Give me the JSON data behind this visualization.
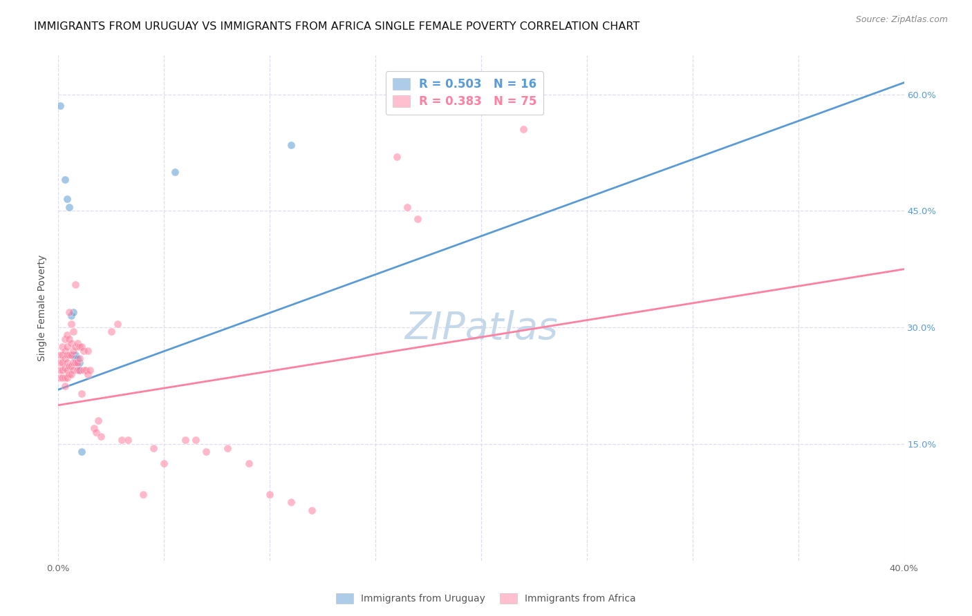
{
  "title": "IMMIGRANTS FROM URUGUAY VS IMMIGRANTS FROM AFRICA SINGLE FEMALE POVERTY CORRELATION CHART",
  "source": "Source: ZipAtlas.com",
  "ylabel": "Single Female Poverty",
  "xlim": [
    0.0,
    0.4
  ],
  "ylim": [
    0.0,
    0.65
  ],
  "watermark": "ZIPatlas",
  "legend_blue_r": "0.503",
  "legend_blue_n": "16",
  "legend_pink_r": "0.383",
  "legend_pink_n": "75",
  "blue_color": "#5B9BD5",
  "pink_color": "#FF80A0",
  "blue_scatter": [
    [
      0.001,
      0.585
    ],
    [
      0.003,
      0.49
    ],
    [
      0.004,
      0.465
    ],
    [
      0.005,
      0.455
    ],
    [
      0.006,
      0.315
    ],
    [
      0.007,
      0.32
    ],
    [
      0.007,
      0.265
    ],
    [
      0.008,
      0.265
    ],
    [
      0.008,
      0.26
    ],
    [
      0.009,
      0.26
    ],
    [
      0.009,
      0.25
    ],
    [
      0.01,
      0.255
    ],
    [
      0.01,
      0.245
    ],
    [
      0.011,
      0.14
    ],
    [
      0.055,
      0.5
    ],
    [
      0.11,
      0.535
    ]
  ],
  "pink_scatter": [
    [
      0.001,
      0.265
    ],
    [
      0.001,
      0.255
    ],
    [
      0.001,
      0.245
    ],
    [
      0.001,
      0.235
    ],
    [
      0.002,
      0.275
    ],
    [
      0.002,
      0.265
    ],
    [
      0.002,
      0.255
    ],
    [
      0.002,
      0.245
    ],
    [
      0.002,
      0.235
    ],
    [
      0.003,
      0.285
    ],
    [
      0.003,
      0.27
    ],
    [
      0.003,
      0.26
    ],
    [
      0.003,
      0.248
    ],
    [
      0.003,
      0.235
    ],
    [
      0.003,
      0.225
    ],
    [
      0.004,
      0.29
    ],
    [
      0.004,
      0.275
    ],
    [
      0.004,
      0.265
    ],
    [
      0.004,
      0.255
    ],
    [
      0.004,
      0.245
    ],
    [
      0.004,
      0.235
    ],
    [
      0.005,
      0.32
    ],
    [
      0.005,
      0.285
    ],
    [
      0.005,
      0.265
    ],
    [
      0.005,
      0.25
    ],
    [
      0.005,
      0.24
    ],
    [
      0.006,
      0.305
    ],
    [
      0.006,
      0.28
    ],
    [
      0.006,
      0.265
    ],
    [
      0.006,
      0.25
    ],
    [
      0.006,
      0.24
    ],
    [
      0.007,
      0.295
    ],
    [
      0.007,
      0.27
    ],
    [
      0.007,
      0.255
    ],
    [
      0.007,
      0.245
    ],
    [
      0.008,
      0.355
    ],
    [
      0.008,
      0.275
    ],
    [
      0.008,
      0.255
    ],
    [
      0.009,
      0.28
    ],
    [
      0.009,
      0.255
    ],
    [
      0.009,
      0.245
    ],
    [
      0.01,
      0.275
    ],
    [
      0.01,
      0.26
    ],
    [
      0.01,
      0.245
    ],
    [
      0.011,
      0.275
    ],
    [
      0.011,
      0.215
    ],
    [
      0.012,
      0.27
    ],
    [
      0.012,
      0.245
    ],
    [
      0.013,
      0.245
    ],
    [
      0.014,
      0.27
    ],
    [
      0.014,
      0.24
    ],
    [
      0.015,
      0.245
    ],
    [
      0.017,
      0.17
    ],
    [
      0.018,
      0.165
    ],
    [
      0.019,
      0.18
    ],
    [
      0.02,
      0.16
    ],
    [
      0.025,
      0.295
    ],
    [
      0.028,
      0.305
    ],
    [
      0.03,
      0.155
    ],
    [
      0.033,
      0.155
    ],
    [
      0.04,
      0.085
    ],
    [
      0.045,
      0.145
    ],
    [
      0.05,
      0.125
    ],
    [
      0.06,
      0.155
    ],
    [
      0.065,
      0.155
    ],
    [
      0.07,
      0.14
    ],
    [
      0.08,
      0.145
    ],
    [
      0.09,
      0.125
    ],
    [
      0.1,
      0.085
    ],
    [
      0.11,
      0.075
    ],
    [
      0.12,
      0.065
    ],
    [
      0.16,
      0.52
    ],
    [
      0.165,
      0.455
    ],
    [
      0.17,
      0.44
    ],
    [
      0.22,
      0.555
    ]
  ],
  "blue_trend_x": [
    0.0,
    0.4
  ],
  "blue_trend_y": [
    0.22,
    0.615
  ],
  "pink_trend_x": [
    0.0,
    0.4
  ],
  "pink_trend_y": [
    0.2,
    0.375
  ],
  "title_fontsize": 11.5,
  "source_fontsize": 9,
  "axis_label_fontsize": 10,
  "tick_fontsize": 9.5,
  "legend_fontsize": 12,
  "watermark_fontsize": 40,
  "watermark_color": "#C5D8EA",
  "background_color": "#FFFFFF",
  "grid_color": "#DDDDEE",
  "scatter_size": 65,
  "scatter_alpha": 0.55,
  "trend_linewidth": 2.0
}
